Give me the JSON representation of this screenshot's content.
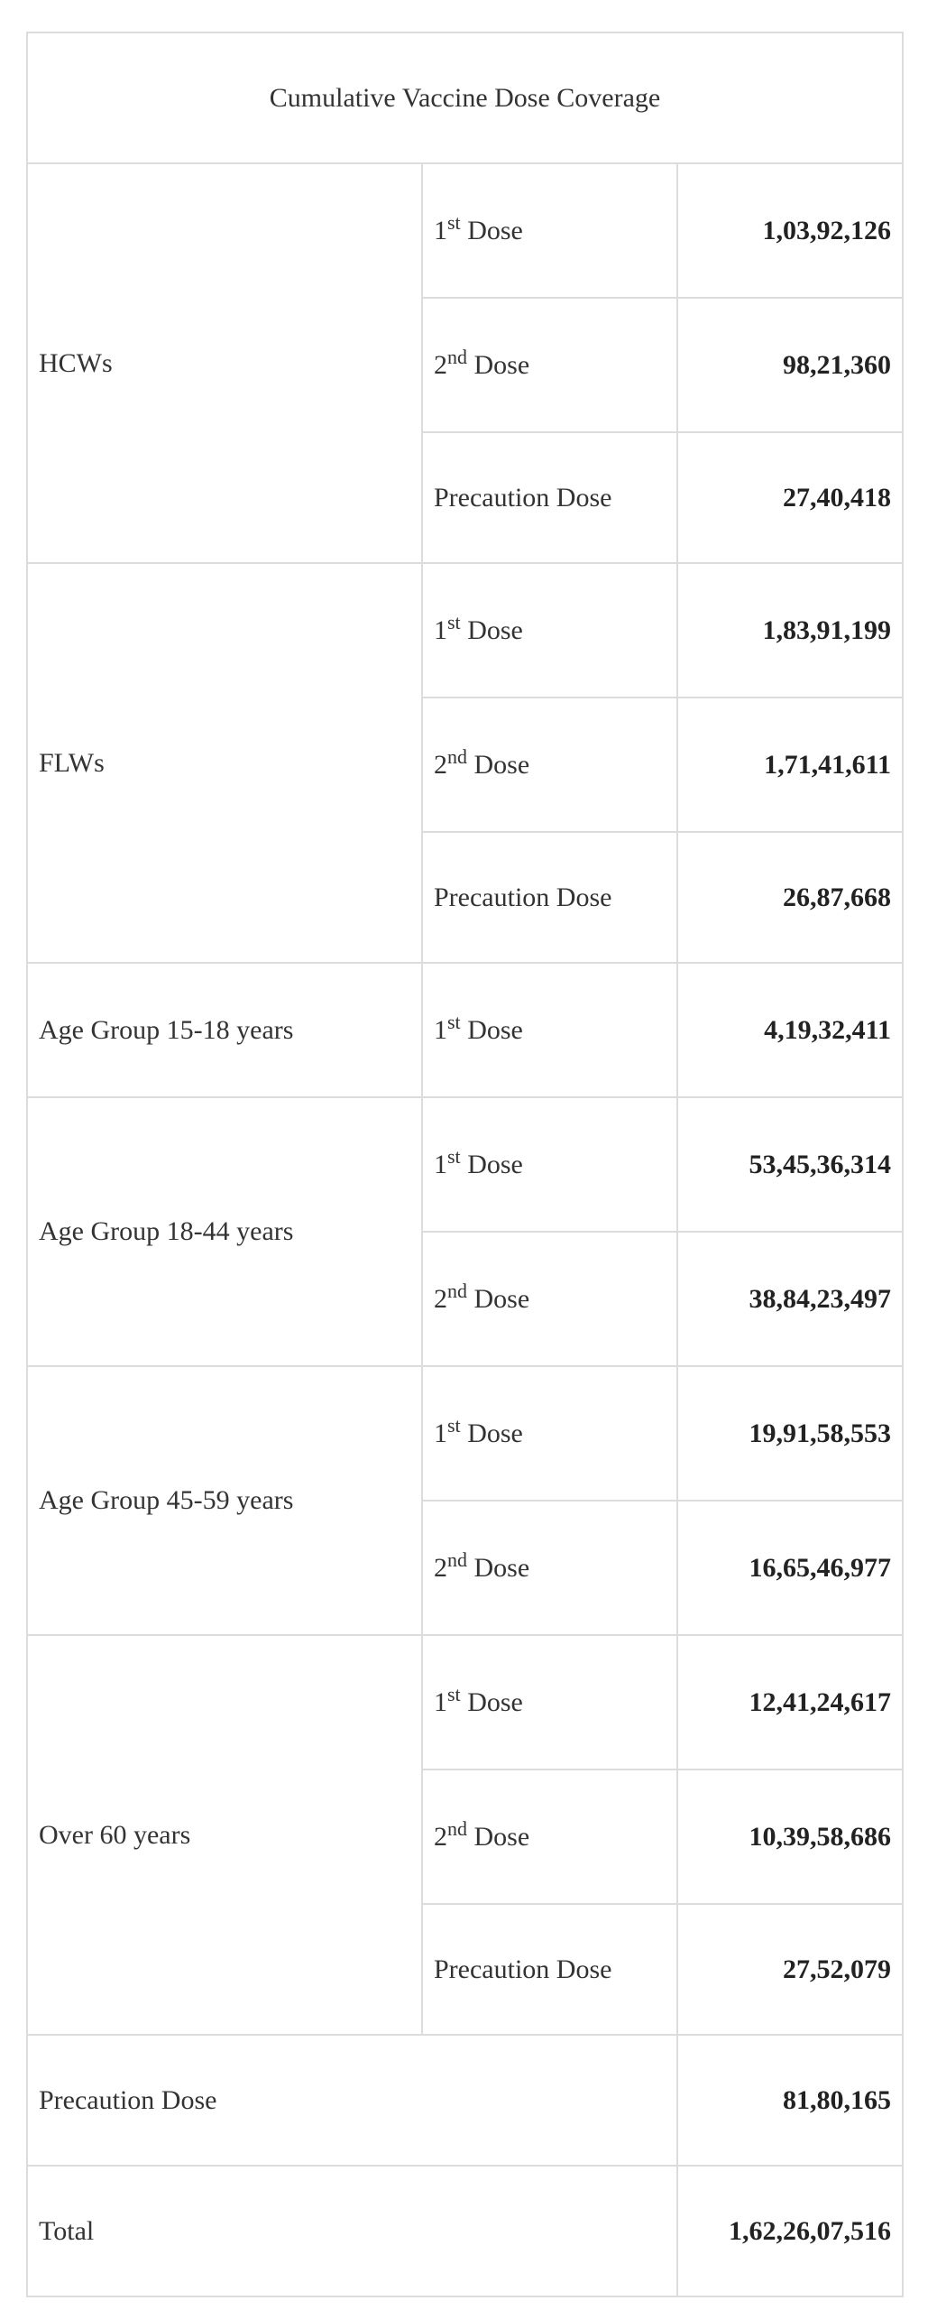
{
  "title": "Cumulative Vaccine Dose Coverage",
  "groups": [
    {
      "label": "HCWs",
      "rows": [
        {
          "num": "1",
          "sup": "st",
          "dose": " Dose",
          "value": "1,03,92,126"
        },
        {
          "num": "2",
          "sup": "nd",
          "dose": " Dose",
          "value": "98,21,360"
        },
        {
          "dose": "Precaution Dose",
          "value": "27,40,418"
        }
      ]
    },
    {
      "label": "FLWs",
      "rows": [
        {
          "num": "1",
          "sup": "st",
          "dose": " Dose",
          "value": "1,83,91,199"
        },
        {
          "num": "2",
          "sup": "nd",
          "dose": " Dose",
          "value": "1,71,41,611"
        },
        {
          "dose": "Precaution Dose",
          "value": "26,87,668"
        }
      ]
    },
    {
      "label": "Age Group 15-18 years",
      "rows": [
        {
          "num": "1",
          "sup": "st",
          "dose": " Dose",
          "value": "4,19,32,411"
        }
      ]
    },
    {
      "label": "Age Group 18-44 years",
      "rows": [
        {
          "num": "1",
          "sup": "st",
          "dose": " Dose",
          "value": "53,45,36,314"
        },
        {
          "num": "2",
          "sup": "nd",
          "dose": " Dose",
          "value": "38,84,23,497"
        }
      ]
    },
    {
      "label": "Age Group 45-59 years",
      "rows": [
        {
          "num": "1",
          "sup": "st",
          "dose": " Dose",
          "value": "19,91,58,553"
        },
        {
          "num": "2",
          "sup": "nd",
          "dose": " Dose",
          "value": "16,65,46,977"
        }
      ]
    },
    {
      "label": "Over 60 years",
      "rows": [
        {
          "num": "1",
          "sup": "st",
          "dose": " Dose",
          "value": "12,41,24,617"
        },
        {
          "num": "2",
          "sup": "nd",
          "dose": " Dose",
          "value": "10,39,58,686"
        },
        {
          "dose": "Precaution Dose",
          "value": "27,52,079"
        }
      ]
    }
  ],
  "precaution_total": {
    "label": "Precaution Dose",
    "value": "81,80,165"
  },
  "grand_total": {
    "label": "Total",
    "value": "1,62,26,07,516"
  }
}
